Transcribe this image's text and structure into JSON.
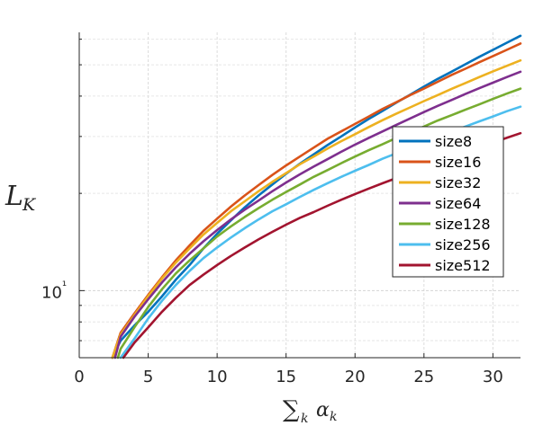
{
  "chart_data": {
    "type": "line",
    "title": "",
    "xlabel": "∑k αk",
    "ylabel": "LK",
    "xlim": [
      0,
      32
    ],
    "ylim": [
      6.2,
      63
    ],
    "yscale": "log",
    "grid": true,
    "legend_position": "right",
    "x_ticks": [
      0,
      5,
      10,
      15,
      20,
      25,
      30
    ],
    "x_tick_labels": [
      "0",
      "5",
      "10",
      "15",
      "20",
      "25",
      "30"
    ],
    "y_major_ticks": [
      10
    ],
    "y_tick_labels": [
      "10¹"
    ],
    "y_minor_ticks": [
      7,
      8,
      9,
      20,
      30,
      40,
      50,
      60
    ],
    "series": [
      {
        "name": "size8",
        "color": "#0072bd",
        "x": [
          2.4,
          3,
          4,
          5,
          6,
          7,
          8,
          9,
          10,
          11,
          12,
          13,
          14,
          15,
          16,
          17,
          18,
          19,
          20,
          21,
          22,
          23,
          24,
          25,
          26,
          27,
          28,
          29,
          30,
          31,
          32
        ],
        "y": [
          6.2,
          7,
          7.8,
          8.6,
          9.6,
          10.8,
          12.0,
          13.5,
          15.0,
          16.5,
          18.1,
          19.7,
          21.3,
          23.0,
          24.7,
          26.4,
          28.2,
          30.0,
          32.0,
          34.0,
          36.0,
          38.2,
          40.4,
          42.8,
          45.2,
          47.6,
          50.2,
          52.9,
          55.6,
          58.5,
          61.5
        ]
      },
      {
        "name": "size16",
        "color": "#d95319",
        "x": [
          2.4,
          3,
          4,
          5,
          6,
          7,
          8,
          9,
          10,
          11,
          12,
          13,
          14,
          15,
          16,
          17,
          18,
          19,
          20,
          21,
          22,
          23,
          24,
          25,
          26,
          27,
          28,
          29,
          30,
          31,
          32
        ],
        "y": [
          6.2,
          7.4,
          8.5,
          9.7,
          11.0,
          12.4,
          13.8,
          15.3,
          16.7,
          18.2,
          19.7,
          21.2,
          22.8,
          24.4,
          26.0,
          27.7,
          29.5,
          31.1,
          32.8,
          34.6,
          36.5,
          38.3,
          40.3,
          42.2,
          44.3,
          46.5,
          48.6,
          50.9,
          53.2,
          55.6,
          58.2
        ]
      },
      {
        "name": "size32",
        "color": "#edb120",
        "x": [
          2.4,
          3,
          4,
          5,
          6,
          7,
          8,
          9,
          10,
          11,
          12,
          13,
          14,
          15,
          16,
          17,
          18,
          19,
          20,
          21,
          22,
          23,
          24,
          25,
          26,
          27,
          28,
          29,
          30,
          31,
          32
        ],
        "y": [
          6.2,
          7.3,
          8.4,
          9.6,
          10.9,
          12.2,
          13.5,
          14.9,
          16.2,
          17.6,
          18.9,
          20.3,
          21.7,
          23.1,
          24.6,
          26.0,
          27.5,
          29.0,
          30.5,
          32.1,
          33.7,
          35.3,
          36.9,
          38.6,
          40.3,
          42.1,
          43.9,
          45.8,
          47.7,
          49.6,
          51.6
        ]
      },
      {
        "name": "size64",
        "color": "#7e2f8e",
        "x": [
          2.6,
          3,
          4,
          5,
          6,
          7,
          8,
          9,
          10,
          11,
          12,
          13,
          14,
          15,
          16,
          17,
          18,
          19,
          20,
          21,
          22,
          23,
          24,
          25,
          26,
          27,
          28,
          29,
          30,
          31,
          32
        ],
        "y": [
          6.2,
          7.2,
          8.3,
          9.4,
          10.6,
          11.8,
          13.0,
          14.2,
          15.4,
          16.6,
          17.8,
          19.0,
          20.3,
          21.6,
          22.9,
          24.2,
          25.5,
          26.9,
          28.3,
          29.7,
          31.1,
          32.6,
          34.1,
          35.7,
          37.3,
          38.9,
          40.6,
          42.3,
          44.0,
          45.8,
          47.6
        ]
      },
      {
        "name": "size128",
        "color": "#77ac30",
        "x": [
          2.8,
          3,
          4,
          5,
          6,
          7,
          8,
          9,
          10,
          11,
          12,
          13,
          14,
          15,
          16,
          17,
          18,
          19,
          20,
          21,
          22,
          23,
          24,
          25,
          26,
          27,
          28,
          29,
          30,
          31,
          32
        ],
        "y": [
          6.2,
          6.6,
          7.7,
          8.9,
          10.1,
          11.3,
          12.4,
          13.5,
          14.7,
          15.8,
          16.9,
          18.0,
          19.1,
          20.2,
          21.3,
          22.5,
          23.6,
          24.8,
          26.0,
          27.2,
          28.4,
          29.7,
          30.9,
          32.2,
          33.6,
          34.9,
          36.3,
          37.7,
          39.2,
          40.7,
          42.2
        ]
      },
      {
        "name": "size256",
        "color": "#4dbeee",
        "x": [
          3.0,
          4,
          5,
          6,
          7,
          8,
          9,
          10,
          11,
          12,
          13,
          14,
          15,
          16,
          17,
          18,
          19,
          20,
          21,
          22,
          23,
          24,
          25,
          26,
          27,
          28,
          29,
          30,
          31,
          32
        ],
        "y": [
          6.2,
          7.1,
          8.2,
          9.3,
          10.4,
          11.5,
          12.6,
          13.6,
          14.6,
          15.6,
          16.6,
          17.6,
          18.5,
          19.5,
          20.5,
          21.5,
          22.5,
          23.5,
          24.5,
          25.6,
          26.6,
          27.7,
          28.8,
          29.9,
          31.1,
          32.2,
          33.4,
          34.6,
          35.9,
          37.1
        ]
      },
      {
        "name": "size512",
        "color": "#a2142f",
        "x": [
          3.2,
          4,
          5,
          6,
          7,
          8,
          9,
          10,
          11,
          12,
          13,
          14,
          15,
          16,
          17,
          18,
          19,
          20,
          21,
          22,
          23,
          24,
          25,
          26,
          27,
          28,
          29,
          30,
          31,
          32
        ],
        "y": [
          6.2,
          6.9,
          7.7,
          8.6,
          9.5,
          10.4,
          11.2,
          12.0,
          12.8,
          13.6,
          14.4,
          15.2,
          16.0,
          16.8,
          17.5,
          18.3,
          19.1,
          19.9,
          20.7,
          21.5,
          22.3,
          23.1,
          24.0,
          24.9,
          25.8,
          26.7,
          27.7,
          28.7,
          29.7,
          30.7
        ]
      }
    ]
  }
}
